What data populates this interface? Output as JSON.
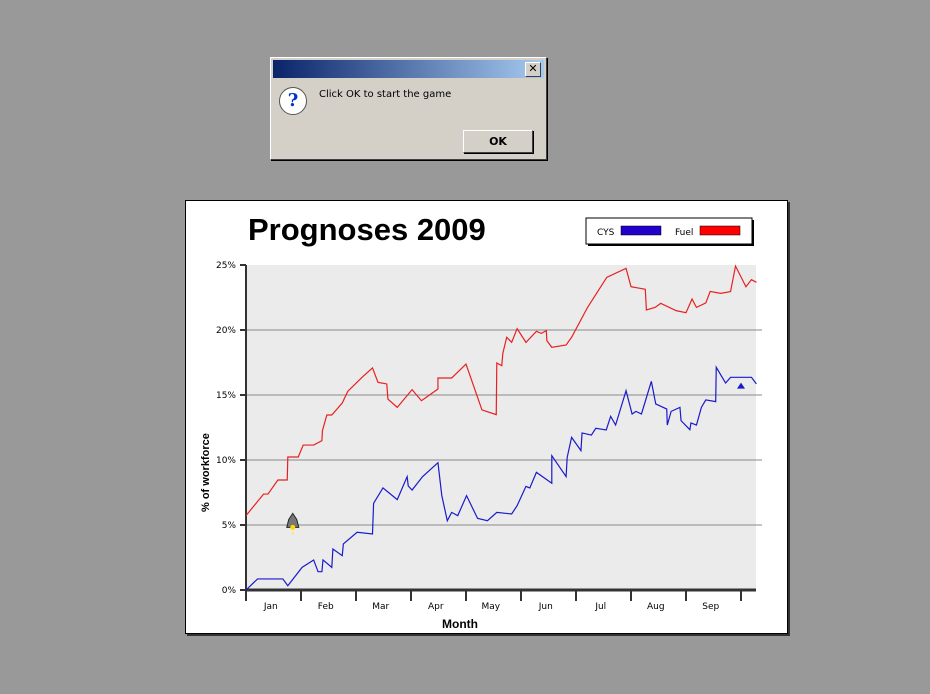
{
  "dialog": {
    "message": "Click OK to start the game",
    "ok_label": "OK",
    "close_label": "✕",
    "icon": "question-icon",
    "icon_glyph": "?"
  },
  "chart_data": {
    "type": "line",
    "title": "Prognoses 2009",
    "xlabel": "Month",
    "ylabel": "% of workforce",
    "x_tick_labels": [
      "Jan",
      "Feb",
      "Mar",
      "Apr",
      "May",
      "Jun",
      "Jul",
      "Aug",
      "Sep"
    ],
    "y_tick_labels": [
      "0%",
      "5%",
      "10%",
      "15%",
      "20%",
      "25%"
    ],
    "y_ticks": [
      0,
      5,
      10,
      15,
      20,
      25
    ],
    "xlim": [
      0,
      9.28
    ],
    "ylim": [
      0,
      25
    ],
    "grid": "horizontal",
    "legend_position": "top-right",
    "series": [
      {
        "name": "CYS",
        "color": "#2200cc",
        "line_color": "#1a1acc",
        "points": [
          [
            0,
            0
          ],
          [
            0.21,
            0.85
          ],
          [
            0.67,
            0.85
          ],
          [
            0.76,
            0.33
          ],
          [
            1.02,
            1.74
          ],
          [
            1.23,
            2.31
          ],
          [
            1.31,
            1.41
          ],
          [
            1.38,
            1.41
          ],
          [
            1.4,
            2.31
          ],
          [
            1.56,
            1.74
          ],
          [
            1.58,
            3.15
          ],
          [
            1.75,
            2.64
          ],
          [
            1.77,
            3.54
          ],
          [
            2.02,
            4.44
          ],
          [
            2.3,
            4.31
          ],
          [
            2.32,
            6.67
          ],
          [
            2.49,
            7.85
          ],
          [
            2.75,
            6.95
          ],
          [
            2.93,
            8.72
          ],
          [
            2.95,
            8.0
          ],
          [
            3.02,
            7.69
          ],
          [
            3.21,
            8.72
          ],
          [
            3.49,
            9.79
          ],
          [
            3.56,
            7.26
          ],
          [
            3.66,
            5.33
          ],
          [
            3.74,
            5.97
          ],
          [
            3.85,
            5.72
          ],
          [
            4.01,
            7.26
          ],
          [
            4.21,
            5.51
          ],
          [
            4.39,
            5.33
          ],
          [
            4.56,
            5.97
          ],
          [
            4.83,
            5.85
          ],
          [
            4.93,
            6.49
          ],
          [
            5.09,
            7.97
          ],
          [
            5.16,
            7.85
          ],
          [
            5.28,
            9.05
          ],
          [
            5.56,
            8.21
          ],
          [
            5.56,
            10.33
          ],
          [
            5.82,
            8.72
          ],
          [
            5.84,
            10.21
          ],
          [
            5.92,
            11.74
          ],
          [
            6.09,
            10.72
          ],
          [
            6.11,
            12.08
          ],
          [
            6.28,
            11.92
          ],
          [
            6.36,
            12.44
          ],
          [
            6.55,
            12.31
          ],
          [
            6.63,
            13.36
          ],
          [
            6.72,
            12.69
          ],
          [
            6.91,
            15.33
          ],
          [
            7.02,
            13.54
          ],
          [
            7.09,
            13.74
          ],
          [
            7.19,
            13.54
          ],
          [
            7.37,
            16.05
          ],
          [
            7.45,
            14.31
          ],
          [
            7.65,
            13.92
          ],
          [
            7.66,
            12.69
          ],
          [
            7.73,
            13.74
          ],
          [
            7.89,
            14.05
          ],
          [
            7.91,
            13.03
          ],
          [
            8.07,
            12.33
          ],
          [
            8.09,
            12.85
          ],
          [
            8.19,
            12.69
          ],
          [
            8.28,
            14.05
          ],
          [
            8.36,
            14.62
          ],
          [
            8.54,
            14.49
          ],
          [
            8.55,
            17.13
          ],
          [
            8.72,
            15.92
          ],
          [
            8.81,
            16.36
          ],
          [
            9.19,
            16.36
          ],
          [
            9.28,
            15.85
          ]
        ],
        "marker": [
          9.0,
          15.72
        ]
      },
      {
        "name": "Fuel",
        "color": "#ff0000",
        "line_color": "#e82020",
        "points": [
          [
            0,
            5.72
          ],
          [
            0.32,
            7.38
          ],
          [
            0.4,
            7.38
          ],
          [
            0.58,
            8.46
          ],
          [
            0.75,
            8.46
          ],
          [
            0.76,
            10.23
          ],
          [
            0.95,
            10.23
          ],
          [
            1.04,
            11.15
          ],
          [
            1.23,
            11.15
          ],
          [
            1.38,
            11.49
          ],
          [
            1.39,
            12.26
          ],
          [
            1.47,
            13.46
          ],
          [
            1.56,
            13.46
          ],
          [
            1.75,
            14.38
          ],
          [
            1.85,
            15.28
          ],
          [
            2.11,
            16.36
          ],
          [
            2.3,
            17.08
          ],
          [
            2.4,
            15.97
          ],
          [
            2.56,
            15.85
          ],
          [
            2.58,
            14.69
          ],
          [
            2.75,
            14.05
          ],
          [
            3.02,
            15.41
          ],
          [
            3.19,
            14.56
          ],
          [
            3.49,
            15.46
          ],
          [
            3.49,
            16.31
          ],
          [
            3.74,
            16.31
          ],
          [
            4.0,
            17.38
          ],
          [
            4.29,
            13.85
          ],
          [
            4.55,
            13.49
          ],
          [
            4.56,
            17.46
          ],
          [
            4.65,
            17.26
          ],
          [
            4.67,
            18.21
          ],
          [
            4.74,
            19.44
          ],
          [
            4.83,
            19.05
          ],
          [
            4.93,
            20.1
          ],
          [
            5.09,
            19.05
          ],
          [
            5.28,
            19.9
          ],
          [
            5.37,
            19.74
          ],
          [
            5.46,
            19.95
          ],
          [
            5.47,
            19.18
          ],
          [
            5.56,
            18.67
          ],
          [
            5.82,
            18.85
          ],
          [
            5.92,
            19.44
          ],
          [
            6.21,
            21.74
          ],
          [
            6.56,
            24.05
          ],
          [
            6.91,
            24.74
          ],
          [
            7.0,
            23.33
          ],
          [
            7.26,
            23.13
          ],
          [
            7.28,
            21.54
          ],
          [
            7.44,
            21.74
          ],
          [
            7.54,
            22.05
          ],
          [
            7.82,
            21.49
          ],
          [
            8.0,
            21.33
          ],
          [
            8.11,
            22.38
          ],
          [
            8.19,
            21.74
          ],
          [
            8.36,
            22.08
          ],
          [
            8.44,
            22.97
          ],
          [
            8.63,
            22.82
          ],
          [
            8.81,
            22.95
          ],
          [
            8.9,
            24.92
          ],
          [
            9.09,
            23.33
          ],
          [
            9.19,
            23.87
          ],
          [
            9.28,
            23.67
          ]
        ]
      }
    ],
    "player_rocket": [
      0.85,
      5.2
    ]
  }
}
